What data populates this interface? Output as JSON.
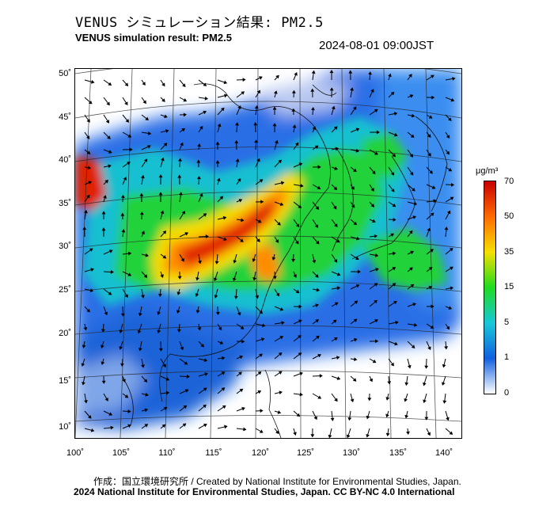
{
  "header": {
    "title_jp": "VENUS シミュレーション結果: PM2.5",
    "title_en": "VENUS simulation result: PM2.5",
    "timestamp": "2024-08-01 09:00JST"
  },
  "axes": {
    "lat_ticks": [
      "50˚",
      "45˚",
      "40˚",
      "35˚",
      "30˚",
      "25˚",
      "20˚",
      "15˚",
      "10˚"
    ],
    "lon_ticks": [
      "100˚",
      "105˚",
      "110˚",
      "115˚",
      "120˚",
      "125˚",
      "130˚",
      "135˚",
      "140˚"
    ]
  },
  "colorbar": {
    "unit": "μg/m³",
    "labels": [
      "70",
      "50",
      "35",
      "15",
      "5",
      "1",
      "0"
    ],
    "colors": [
      "#c80000",
      "#ff6a00",
      "#f5e000",
      "#1fdc1f",
      "#18c8d8",
      "#1060e0",
      "#ffffff"
    ]
  },
  "credits": {
    "line1": "作成：国立環境研究所 / Created by National Institute for Environmental Studies, Japan.",
    "line2": "2024 National Institute for Environmental Studies, Japan. CC BY-NC 4.0 International"
  }
}
